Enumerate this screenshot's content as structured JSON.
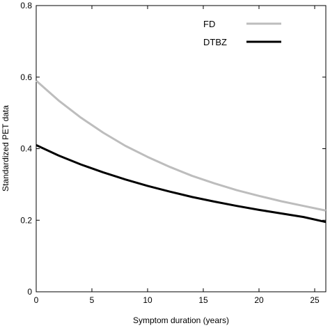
{
  "chart_data": {
    "type": "line",
    "xlabel": "Symptom duration (years)",
    "ylabel": "Standardized PET data",
    "xlim": [
      0,
      26
    ],
    "ylim": [
      0,
      0.8
    ],
    "xticks": [
      0,
      5,
      10,
      15,
      20,
      25
    ],
    "yticks": [
      0,
      0.2,
      0.4,
      0.6,
      0.8
    ],
    "xtick_labels": [
      "0",
      "5",
      "10",
      "15",
      "20",
      "25"
    ],
    "ytick_labels": [
      "0",
      "0.2",
      "0.4",
      "0.6",
      "0.8"
    ],
    "grid": false,
    "legend_position": "top-right",
    "x": [
      0,
      2,
      4,
      6,
      8,
      10,
      12,
      14,
      16,
      18,
      20,
      22,
      24,
      26
    ],
    "series": [
      {
        "name": "FD",
        "color": "#bdbdbd",
        "values": [
          0.59,
          0.535,
          0.487,
          0.445,
          0.408,
          0.377,
          0.349,
          0.324,
          0.303,
          0.284,
          0.268,
          0.253,
          0.24,
          0.227
        ]
      },
      {
        "name": "DTBZ",
        "color": "#000000",
        "values": [
          0.41,
          0.381,
          0.356,
          0.334,
          0.314,
          0.296,
          0.28,
          0.265,
          0.252,
          0.24,
          0.229,
          0.219,
          0.209,
          0.195
        ]
      }
    ]
  }
}
